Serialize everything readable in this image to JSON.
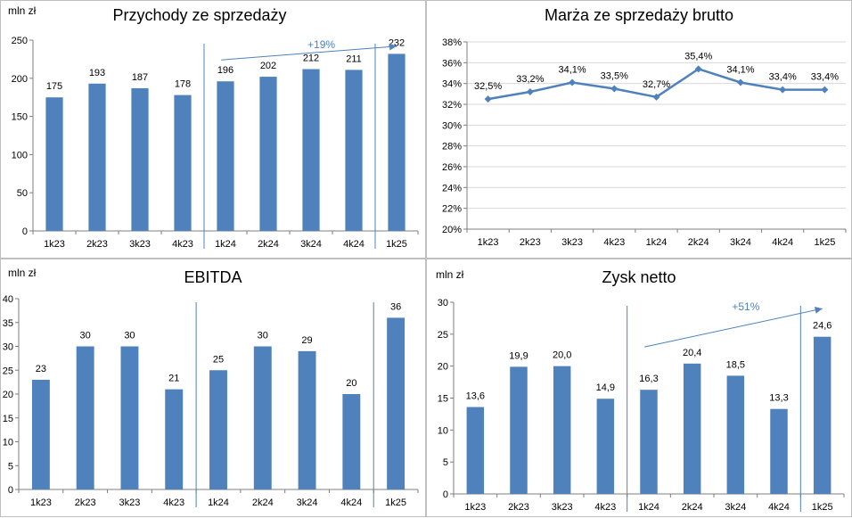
{
  "colors": {
    "bar": "#4f81bd",
    "line": "#4f81bd",
    "trend": "#4f81bd",
    "axis": "#7f7f7f",
    "grid": "#d9d9d9"
  },
  "chart_data": [
    {
      "type": "bar",
      "title": "Przychody ze sprzedaży",
      "unit": "mln zł",
      "categories": [
        "1k23",
        "2k23",
        "3k23",
        "4k23",
        "1k24",
        "2k24",
        "3k24",
        "4k24",
        "1k25"
      ],
      "values": [
        175,
        193,
        187,
        178,
        196,
        202,
        212,
        211,
        232
      ],
      "value_labels": [
        "175",
        "193",
        "187",
        "178",
        "196",
        "202",
        "212",
        "211",
        "232"
      ],
      "ylim": [
        0,
        250
      ],
      "yticks": [
        0,
        50,
        100,
        150,
        200,
        250
      ],
      "ytick_labels": [
        "0",
        "50",
        "100",
        "150",
        "200",
        "250"
      ],
      "grid": false,
      "separators_after": [
        4,
        8
      ],
      "annotation": {
        "text": "+19%",
        "from": [
          5,
          224
        ],
        "to": [
          9,
          242
        ]
      }
    },
    {
      "type": "line",
      "title": "Marża ze sprzedaży brutto",
      "unit": "",
      "categories": [
        "1k23",
        "2k23",
        "3k23",
        "4k23",
        "1k24",
        "2k24",
        "3k24",
        "4k24",
        "1k25"
      ],
      "values": [
        32.5,
        33.2,
        34.1,
        33.5,
        32.7,
        35.4,
        34.1,
        33.4,
        33.4
      ],
      "value_labels": [
        "32,5%",
        "33,2%",
        "34,1%",
        "33,5%",
        "32,7%",
        "35,4%",
        "34,1%",
        "33,4%",
        "33,4%"
      ],
      "ylim": [
        20,
        38
      ],
      "yticks": [
        20,
        22,
        24,
        26,
        28,
        30,
        32,
        34,
        36,
        38
      ],
      "ytick_labels": [
        "20%",
        "22%",
        "24%",
        "26%",
        "28%",
        "30%",
        "32%",
        "34%",
        "36%",
        "38%"
      ],
      "grid": true,
      "separators_after": [],
      "annotation": null
    },
    {
      "type": "bar",
      "title": "EBITDA",
      "unit": "mln zł",
      "categories": [
        "1k23",
        "2k23",
        "3k23",
        "4k23",
        "1k24",
        "2k24",
        "3k24",
        "4k24",
        "1k25"
      ],
      "values": [
        23,
        30,
        30,
        21,
        25,
        30,
        29,
        20,
        36
      ],
      "value_labels": [
        "23",
        "30",
        "30",
        "21",
        "25",
        "30",
        "29",
        "20",
        "36"
      ],
      "ylim": [
        0,
        40
      ],
      "yticks": [
        0,
        5,
        10,
        15,
        20,
        25,
        30,
        35,
        40
      ],
      "ytick_labels": [
        "0",
        "5",
        "10",
        "15",
        "20",
        "25",
        "30",
        "35",
        "40"
      ],
      "grid": false,
      "separators_after": [
        4,
        8
      ],
      "annotation": null
    },
    {
      "type": "bar",
      "title": "Zysk netto",
      "unit": "mln zł",
      "categories": [
        "1k23",
        "2k23",
        "3k23",
        "4k23",
        "1k24",
        "2k24",
        "3k24",
        "4k24",
        "1k25"
      ],
      "values": [
        13.6,
        19.9,
        20.0,
        14.9,
        16.3,
        20.4,
        18.5,
        13.3,
        24.6
      ],
      "value_labels": [
        "13,6",
        "19,9",
        "20,0",
        "14,9",
        "16,3",
        "20,4",
        "18,5",
        "13,3",
        "24,6"
      ],
      "ylim": [
        0,
        30
      ],
      "yticks": [
        0,
        5,
        10,
        15,
        20,
        25,
        30
      ],
      "ytick_labels": [
        "0",
        "5",
        "10",
        "15",
        "20",
        "25",
        "30"
      ],
      "grid": false,
      "separators_after": [
        4,
        8
      ],
      "annotation": {
        "text": "+51%",
        "from": [
          5,
          23
        ],
        "to": [
          9,
          29
        ]
      }
    }
  ]
}
